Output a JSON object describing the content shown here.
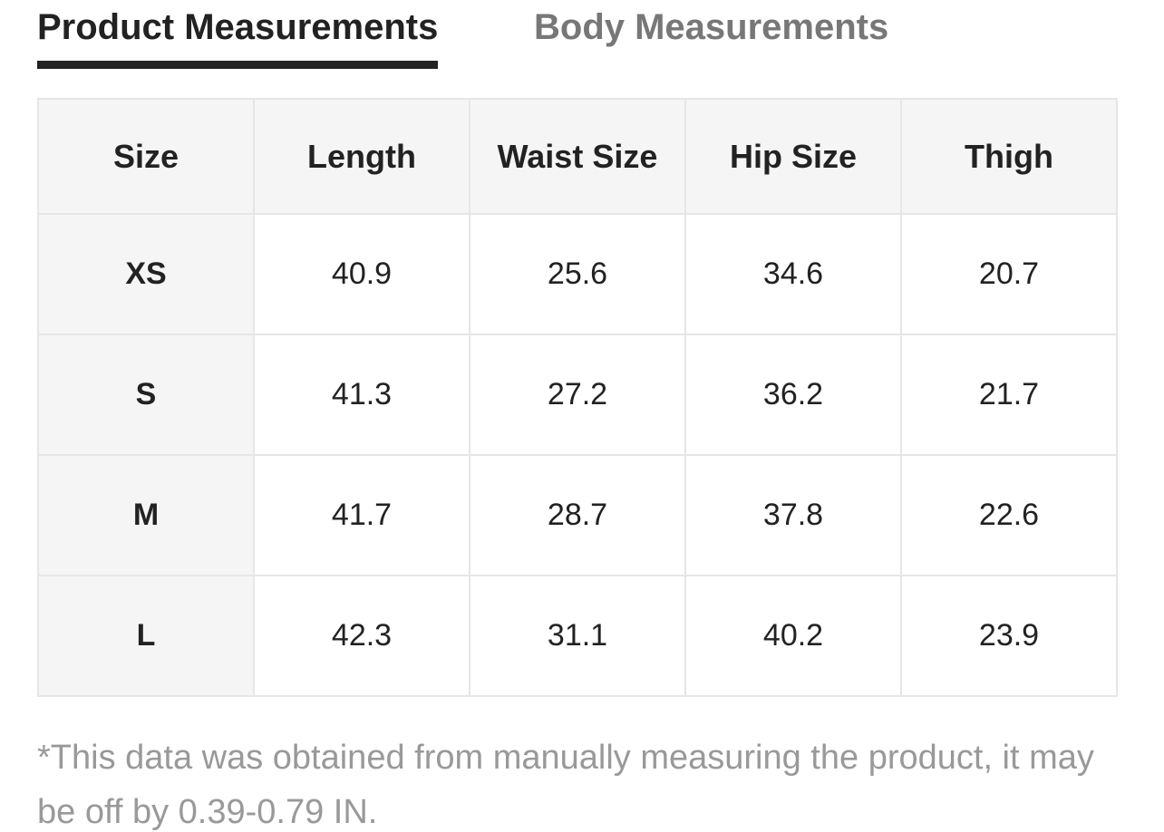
{
  "tabs": [
    "Product Measurements",
    "Body Measurements"
  ],
  "table": {
    "header": [
      "Size",
      "Length",
      "Waist Size",
      "Hip Size",
      "Thigh"
    ],
    "rows": [
      [
        "XS",
        40.9,
        25.6,
        34.6,
        20.7
      ],
      [
        "S",
        41.3,
        27.2,
        36.2,
        21.7
      ],
      [
        "M",
        41.7,
        28.7,
        37.8,
        22.6
      ],
      [
        "L",
        42.3,
        31.1,
        40.2,
        23.9
      ]
    ]
  },
  "note": "*This data was obtained from manually measuring the product, it may be off by 0.39-0.79 IN."
}
